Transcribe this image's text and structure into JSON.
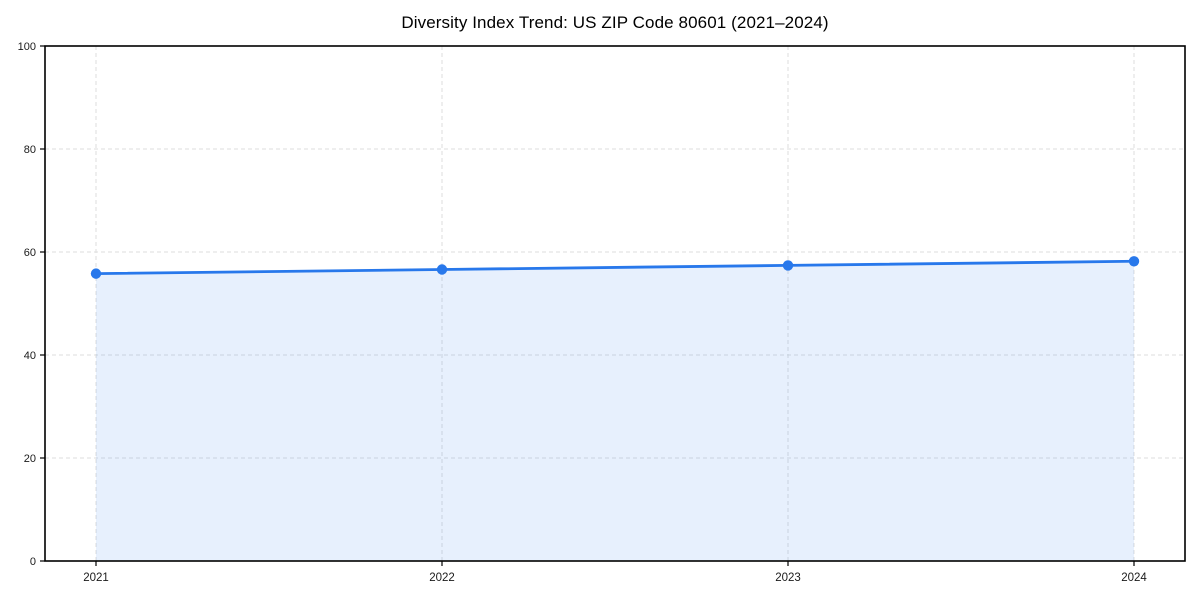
{
  "chart_data": {
    "type": "line",
    "title": "Diversity Index Trend: US ZIP Code 80601 (2021–2024)",
    "categories": [
      "2021",
      "2022",
      "2023",
      "2024"
    ],
    "values": [
      55.8,
      56.6,
      57.4,
      58.2
    ],
    "xlabel": "",
    "ylabel": "",
    "ylim": [
      0,
      100
    ],
    "yticks": [
      0,
      20,
      40,
      60,
      80,
      100
    ],
    "grid": "dashed, horizontal and vertical",
    "legend": "none",
    "area_fill": true,
    "marker": "circle",
    "colors": {
      "line": "#2878eb",
      "marker": "#2878eb",
      "area_fill": "rgba(40,120,235,0.11)",
      "grid": "#dedede",
      "axis": "#000000",
      "tick_labels": "#1a1a1a",
      "title": "#000000",
      "background": "#ffffff"
    }
  }
}
